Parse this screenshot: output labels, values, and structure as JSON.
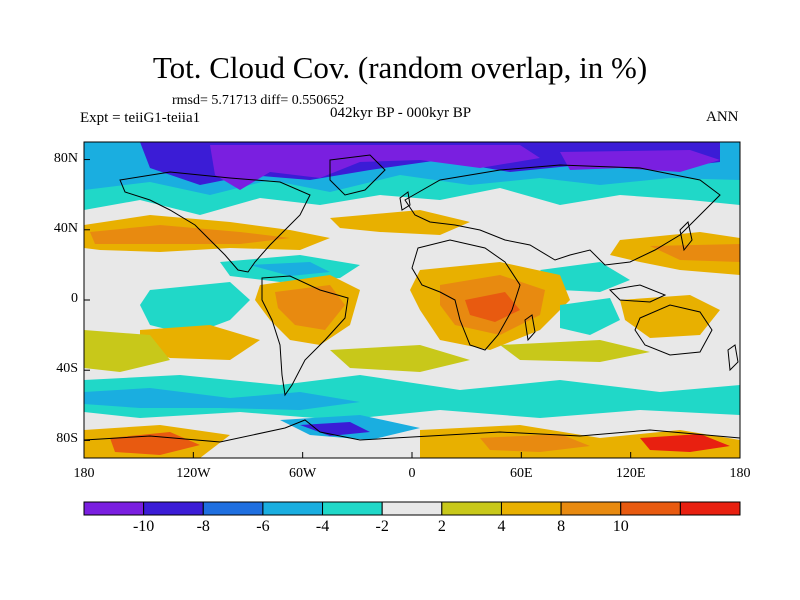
{
  "header": {
    "title": "Tot. Cloud Cov. (random overlap, in %)",
    "stats": "rmsd= 5.71713 diff= 0.550652",
    "experiment": "Expt = teiiG1-teiia1",
    "period": "042kyr BP - 000kyr BP",
    "season": "ANN"
  },
  "axes": {
    "lat_ticks": [
      {
        "label": "80N",
        "value": 80
      },
      {
        "label": "40N",
        "value": 40
      },
      {
        "label": "0",
        "value": 0
      },
      {
        "label": "40S",
        "value": -40
      },
      {
        "label": "80S",
        "value": -80
      }
    ],
    "lon_ticks": [
      {
        "label": "180",
        "value": -180
      },
      {
        "label": "120W",
        "value": -120
      },
      {
        "label": "60W",
        "value": -60
      },
      {
        "label": "0",
        "value": 0
      },
      {
        "label": "60E",
        "value": 60
      },
      {
        "label": "120E",
        "value": 120
      },
      {
        "label": "180",
        "value": 180
      }
    ],
    "lat_range": [
      -90,
      90
    ],
    "lon_range": [
      -180,
      180
    ]
  },
  "colorbar": {
    "colors": [
      "#7a1fe0",
      "#3b1cd6",
      "#1f6fe0",
      "#1aaee0",
      "#20d8c8",
      "#e8e8e8",
      "#c8c81a",
      "#e8b000",
      "#e88a10",
      "#e85a10",
      "#e82010"
    ],
    "labels": [
      {
        "text": "-10",
        "after_box": 1
      },
      {
        "text": "-8",
        "after_box": 2
      },
      {
        "text": "-6",
        "after_box": 3
      },
      {
        "text": "-4",
        "after_box": 4
      },
      {
        "text": "-2",
        "after_box": 5
      },
      {
        "text": "2",
        "after_box": 6
      },
      {
        "text": "4",
        "after_box": 7
      },
      {
        "text": "8",
        "after_box": 8
      },
      {
        "text": "10",
        "after_box": 9
      }
    ]
  }
}
